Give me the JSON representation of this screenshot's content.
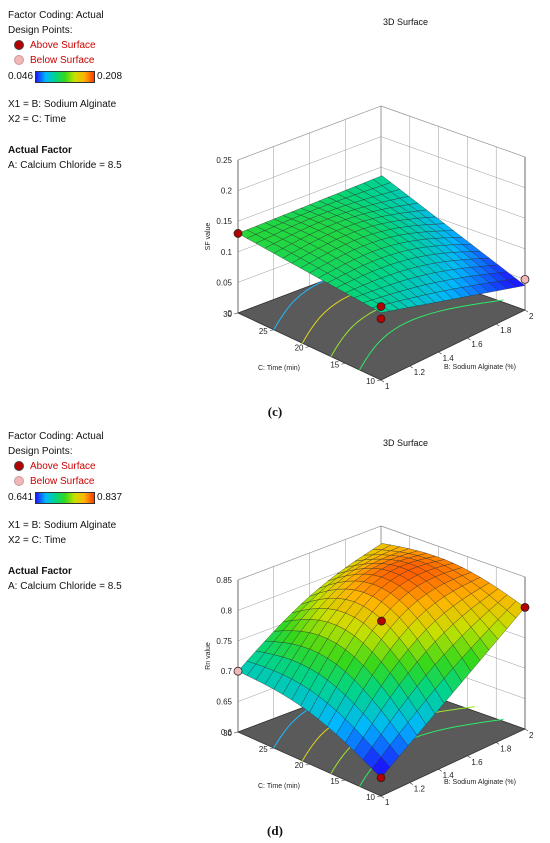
{
  "chart_data": [
    {
      "type": "surface3d",
      "title": "3D Surface",
      "caption": "(c)",
      "legend": {
        "factor_coding": "Factor Coding: Actual",
        "design_points": "Design Points:",
        "above": "Above Surface",
        "below": "Below Surface",
        "color_min": "0.046",
        "color_max": "0.208",
        "x1": "X1 = B: Sodium Alginate",
        "x2": "X2 = C: Time",
        "actual_factor": "Actual Factor",
        "actual_value": "A: Calcium Chloride = 8.5"
      },
      "zlabel": "SF value",
      "xlabel": "B: Sodium Alginate (%)",
      "ylabel": "C: Time (min)",
      "z_ticks": [
        "0",
        "0.05",
        "0.1",
        "0.15",
        "0.2",
        "0.25"
      ],
      "x_ticks": [
        "1",
        "1.2",
        "1.4",
        "1.6",
        "1.8",
        "2"
      ],
      "y_ticks": [
        "10",
        "15",
        "20",
        "25",
        "30"
      ],
      "xlim": [
        1,
        2
      ],
      "ylim": [
        10,
        30
      ],
      "zlim": [
        0,
        0.25
      ],
      "colorbar_range": [
        0.046,
        0.208
      ],
      "surface_corners": {
        "sa1_t30": 0.13,
        "sa2_t30": 0.11,
        "sa1_t10": 0.11,
        "sa2_t10": 0.05
      },
      "design_points": [
        {
          "sa": 1,
          "t": 30,
          "z": 0.13,
          "side": "above"
        },
        {
          "sa": 1,
          "t": 10,
          "z": 0.12,
          "side": "above"
        },
        {
          "sa": 1,
          "t": 10,
          "z": 0.1,
          "side": "above"
        },
        {
          "sa": 2,
          "t": 10,
          "z": 0.05,
          "side": "below"
        }
      ]
    },
    {
      "type": "surface3d",
      "title": "3D Surface",
      "caption": "(d)",
      "legend": {
        "factor_coding": "Factor Coding: Actual",
        "design_points": "Design Points:",
        "above": "Above Surface",
        "below": "Below Surface",
        "color_min": "0.641",
        "color_max": "0.837",
        "x1": "X1 = B: Sodium Alginate",
        "x2": "X2 = C: Time",
        "actual_factor": "Actual Factor",
        "actual_value": "A: Calcium Chloride = 8.5"
      },
      "zlabel": "Rn value",
      "xlabel": "B: Sodium Alginate (%)",
      "ylabel": "C: Time (min)",
      "z_ticks": [
        "0.6",
        "0.65",
        "0.7",
        "0.75",
        "0.8",
        "0.85"
      ],
      "x_ticks": [
        "1",
        "1.2",
        "1.4",
        "1.6",
        "1.8",
        "2"
      ],
      "y_ticks": [
        "10",
        "15",
        "20",
        "25",
        "30"
      ],
      "xlim": [
        1,
        2
      ],
      "ylim": [
        10,
        30
      ],
      "zlim": [
        0.6,
        0.85
      ],
      "colorbar_range": [
        0.641,
        0.837
      ],
      "surface_corners": {
        "sa1_t30": 0.7,
        "sa2_t30": 0.8,
        "sa1_t10": 0.63,
        "sa2_t10": 0.8
      },
      "design_points": [
        {
          "sa": 1,
          "t": 30,
          "z": 0.7,
          "side": "below"
        },
        {
          "sa": 1.5,
          "t": 20,
          "z": 0.78,
          "side": "above"
        },
        {
          "sa": 1,
          "t": 10,
          "z": 0.63,
          "side": "above"
        },
        {
          "sa": 2,
          "t": 10,
          "z": 0.8,
          "side": "above"
        }
      ]
    }
  ],
  "colors": {
    "above": "#b30000",
    "below": "#f2b7b7",
    "floor": "#5a5a5a"
  }
}
